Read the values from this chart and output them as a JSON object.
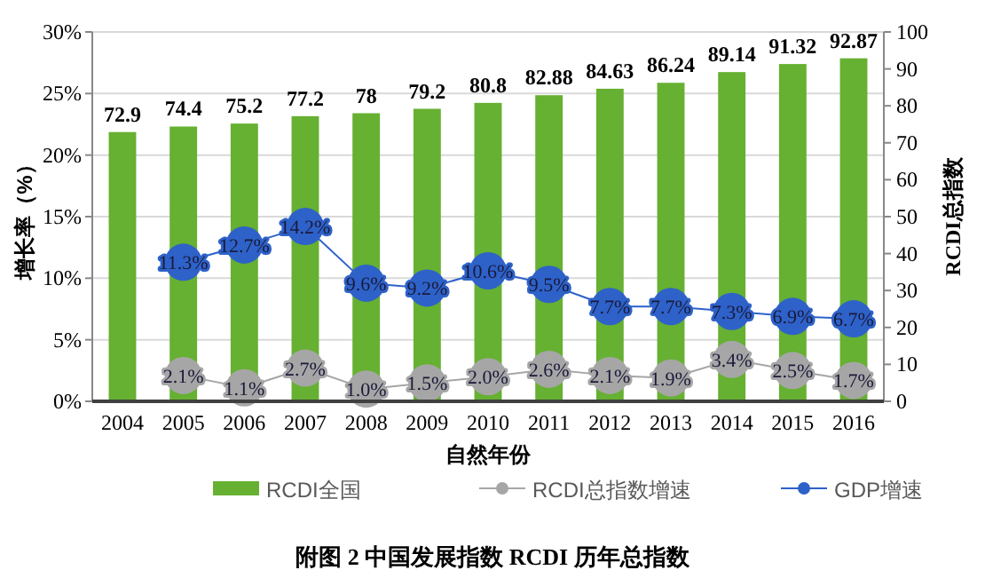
{
  "chart_data": {
    "type": "bar",
    "title": "附图 2  中国发展指数 RCDI 历年总指数",
    "xlabel": "自然年份",
    "ylabel": "增长率（%）",
    "y2label": "RCDI总指数",
    "categories": [
      "2004",
      "2005",
      "2006",
      "2007",
      "2008",
      "2009",
      "2010",
      "2011",
      "2012",
      "2013",
      "2014",
      "2015",
      "2016"
    ],
    "series": [
      {
        "name": "RCDI全国",
        "color": "#66b032",
        "axis": "y2",
        "values": [
          72.9,
          74.4,
          75.2,
          77.2,
          78,
          79.2,
          80.8,
          82.88,
          84.63,
          86.24,
          89.14,
          91.32,
          92.87
        ],
        "value_labels": [
          "72.9",
          "74.4",
          "75.2",
          "77.2",
          "78",
          "79.2",
          "80.8",
          "82.88",
          "84.63",
          "86.24",
          "89.14",
          "91.32",
          "92.87"
        ]
      },
      {
        "type": "line",
        "name": "RCDI总指数增速",
        "color": "#a6a6a6",
        "values": [
          null,
          2.1,
          1.1,
          2.7,
          1.0,
          1.5,
          2.0,
          2.6,
          2.1,
          1.9,
          3.4,
          2.5,
          1.7
        ],
        "value_labels": [
          null,
          "2.1%",
          "1.1%",
          "2.7%",
          "1.0%",
          "1.5%",
          "2.0%",
          "2.6%",
          "2.1%",
          "1.9%",
          "3.4%",
          "2.5%",
          "1.7%"
        ]
      },
      {
        "type": "line",
        "name": "GDP增速",
        "color": "#2e62c9",
        "values": [
          null,
          11.3,
          12.7,
          14.2,
          9.6,
          9.2,
          10.6,
          9.5,
          7.7,
          7.7,
          7.3,
          6.9,
          6.7
        ],
        "value_labels": [
          null,
          "11.3%",
          "12.7%",
          "14.2%",
          "9.6%",
          "9.2%",
          "10.6%",
          "9.5%",
          "7.7%",
          "7.7%",
          "7.3%",
          "6.9%",
          "6.7%"
        ]
      }
    ],
    "ylim": [
      0,
      30
    ],
    "yticks": [
      {
        "value": 0,
        "label": "0%"
      },
      {
        "value": 5,
        "label": "5%"
      },
      {
        "value": 10,
        "label": "10%"
      },
      {
        "value": 15,
        "label": "15%"
      },
      {
        "value": 20,
        "label": "20%"
      },
      {
        "value": 25,
        "label": "25%"
      },
      {
        "value": 30,
        "label": "30%"
      }
    ],
    "y2lim": [
      0,
      100
    ],
    "y2ticks": [
      0,
      10,
      20,
      30,
      40,
      50,
      60,
      70,
      80,
      90,
      100
    ],
    "grid": "y",
    "legend": "bottom",
    "marker": "circle",
    "line_style": "solid"
  }
}
